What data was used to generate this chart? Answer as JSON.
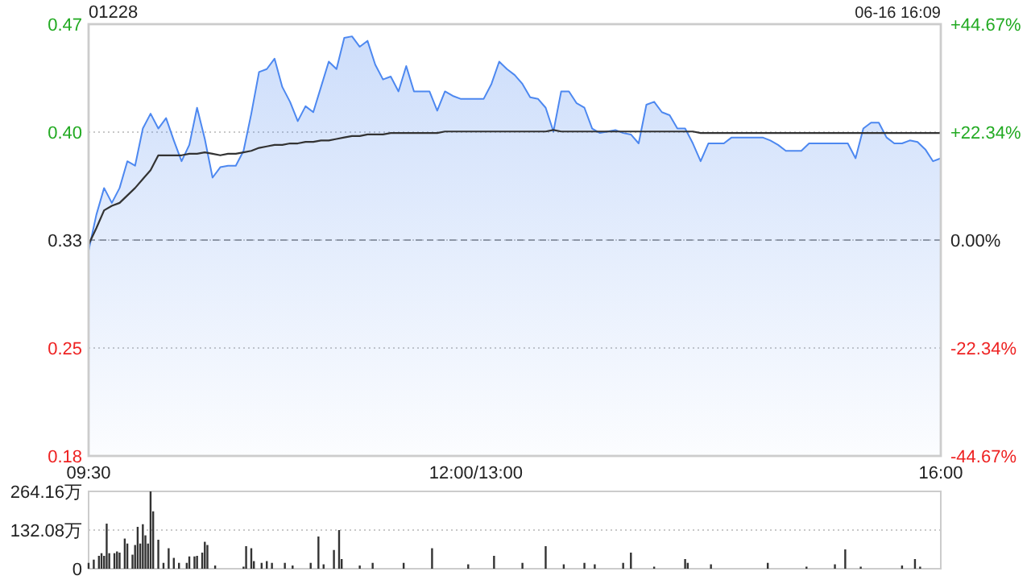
{
  "chart_data": [
    {
      "type": "area",
      "title": "01228",
      "annotations": [
        "06-16 16:09"
      ],
      "grid": "y",
      "categories": [
        "09:30",
        null,
        null,
        null,
        null,
        null,
        null,
        null,
        null,
        null,
        null,
        null,
        null,
        null,
        null,
        null,
        null,
        null,
        null,
        null,
        null,
        null,
        null,
        null,
        null,
        null,
        null,
        null,
        null,
        null,
        null,
        null,
        null,
        null,
        null,
        null,
        null,
        null,
        null,
        null,
        null,
        null,
        null,
        null,
        null,
        null,
        null,
        null,
        null,
        null,
        "12:00/13:00",
        null,
        null,
        null,
        null,
        null,
        null,
        null,
        null,
        null,
        null,
        null,
        null,
        null,
        null,
        null,
        null,
        null,
        null,
        null,
        null,
        null,
        null,
        null,
        null,
        null,
        null,
        null,
        null,
        null,
        null,
        null,
        null,
        null,
        null,
        null,
        null,
        null,
        null,
        null,
        null,
        null,
        null,
        null,
        null,
        null,
        null,
        null,
        null,
        null,
        null,
        null,
        null,
        null,
        null,
        null,
        null,
        null,
        null,
        null,
        "16:00"
      ],
      "ylim": [
        0.1798,
        0.4702
      ],
      "yticks": [
        {
          "value": 0.1798,
          "label": "0.18"
        },
        {
          "value": 0.2524,
          "label": "0.25"
        },
        {
          "value": 0.325,
          "label": "0.33"
        },
        {
          "value": 0.3976,
          "label": "0.40"
        },
        {
          "value": 0.4702,
          "label": "0.47"
        }
      ],
      "y2lim": [
        -44.67,
        44.67
      ],
      "y2ticks": [
        {
          "value": -44.67,
          "label": "-44.67%"
        },
        {
          "value": -22.34,
          "label": "-22.34%"
        },
        {
          "value": 0,
          "label": "0.00%"
        },
        {
          "value": 22.34,
          "label": "+22.34%"
        },
        {
          "value": 44.67,
          "label": "+44.67%"
        }
      ],
      "ref_lines": [
        {
          "axis": "y",
          "value": 0.325,
          "color": "#999999",
          "line_style": "dashed"
        }
      ],
      "series": [
        {
          "color": "#4d88f0",
          "values": [
            0.318,
            0.342,
            0.36,
            0.35,
            0.36,
            0.378,
            0.375,
            0.4,
            0.41,
            0.4,
            0.407,
            0.392,
            0.378,
            0.389,
            0.414,
            0.393,
            0.367,
            0.374,
            0.375,
            0.375,
            0.385,
            0.41,
            0.438,
            0.44,
            0.447,
            0.428,
            0.418,
            0.405,
            0.415,
            0.411,
            0.428,
            0.445,
            0.44,
            0.461,
            0.462,
            0.455,
            0.459,
            0.443,
            0.433,
            0.435,
            0.425,
            0.442,
            0.425,
            0.425,
            0.425,
            0.412,
            0.425,
            0.422,
            0.42,
            0.42,
            0.42,
            0.42,
            0.43,
            0.445,
            0.44,
            0.436,
            0.43,
            0.421,
            0.42,
            0.414,
            0.398,
            0.425,
            0.425,
            0.417,
            0.414,
            0.4,
            0.397,
            0.398,
            0.399,
            0.397,
            0.396,
            0.39,
            0.416,
            0.418,
            0.411,
            0.409,
            0.4,
            0.4,
            0.39,
            0.378,
            0.39,
            0.39,
            0.39,
            0.394,
            0.394,
            0.394,
            0.394,
            0.394,
            0.392,
            0.389,
            0.385,
            0.385,
            0.385,
            0.39,
            0.39,
            0.39,
            0.39,
            0.39,
            0.39,
            0.38,
            0.4,
            0.404,
            0.404,
            0.394,
            0.39,
            0.39,
            0.392,
            0.391,
            0.386,
            0.378,
            0.38
          ]
        },
        {
          "type": "line",
          "color": "#333333",
          "values": [
            0.322,
            0.333,
            0.345,
            0.348,
            0.35,
            0.355,
            0.36,
            0.366,
            0.372,
            0.382,
            0.382,
            0.382,
            0.382,
            0.383,
            0.383,
            0.384,
            0.383,
            0.382,
            0.383,
            0.383,
            0.384,
            0.385,
            0.387,
            0.388,
            0.389,
            0.389,
            0.39,
            0.39,
            0.391,
            0.391,
            0.392,
            0.392,
            0.393,
            0.394,
            0.395,
            0.395,
            0.396,
            0.396,
            0.396,
            0.397,
            0.397,
            0.397,
            0.397,
            0.397,
            0.397,
            0.397,
            0.398,
            0.398,
            0.398,
            0.398,
            0.398,
            0.398,
            0.398,
            0.398,
            0.398,
            0.398,
            0.398,
            0.398,
            0.398,
            0.398,
            0.399,
            0.398,
            0.398,
            0.398,
            0.398,
            0.398,
            0.398,
            0.398,
            0.398,
            0.398,
            0.398,
            0.398,
            0.398,
            0.398,
            0.398,
            0.398,
            0.398,
            0.398,
            0.398,
            0.397,
            0.397,
            0.397,
            0.397,
            0.397,
            0.397,
            0.397,
            0.397,
            0.397,
            0.397,
            0.397,
            0.397,
            0.397,
            0.397,
            0.397,
            0.397,
            0.397,
            0.397,
            0.397,
            0.397,
            0.397,
            0.397,
            0.397,
            0.397,
            0.397,
            0.397,
            0.397,
            0.397,
            0.397,
            0.397,
            0.397,
            0.397
          ]
        }
      ]
    },
    {
      "type": "bar",
      "grid": "y",
      "categories": [
        null,
        null,
        null,
        null,
        null,
        null,
        null,
        null,
        null,
        null,
        null,
        null,
        null,
        null,
        null,
        null,
        null,
        null,
        null,
        null,
        null,
        null,
        null,
        null,
        null,
        null,
        null,
        null,
        null,
        null,
        null,
        null,
        null,
        null,
        null,
        null,
        null,
        null,
        null,
        null,
        null,
        null,
        null,
        null,
        null,
        null,
        null,
        null,
        null,
        null,
        null,
        null,
        null,
        null,
        null,
        null,
        null,
        null,
        null,
        null,
        null,
        null,
        null,
        null,
        null,
        null,
        null,
        null,
        null,
        null,
        null,
        null,
        null,
        null,
        null,
        null,
        null,
        null,
        null,
        null,
        null,
        null,
        null,
        null,
        null,
        null,
        null,
        null,
        null,
        null,
        null,
        null,
        null,
        null,
        null,
        null,
        null,
        null,
        null,
        null,
        null,
        null,
        null,
        null,
        null,
        null,
        null,
        null,
        null,
        null,
        null,
        null,
        null,
        null,
        null,
        null,
        null,
        null,
        null,
        null,
        null,
        null,
        null,
        null,
        null,
        null,
        null,
        null,
        null,
        null,
        null,
        null,
        null,
        null,
        null,
        null,
        null,
        null,
        null,
        null,
        null,
        null,
        null,
        null,
        null,
        null,
        null,
        null,
        null,
        null,
        null,
        null,
        null,
        null,
        null,
        null,
        null,
        null,
        null,
        null,
        null,
        null,
        null,
        null,
        null,
        null,
        null,
        null,
        null,
        null,
        null,
        null,
        null,
        null,
        null,
        null,
        null,
        null,
        null,
        null,
        null,
        null,
        null,
        null,
        null,
        null,
        null,
        null,
        null,
        null,
        null,
        null,
        null,
        null,
        null,
        null,
        null,
        null,
        null,
        null,
        null,
        null,
        null,
        null,
        null,
        null,
        null,
        null,
        null,
        null,
        null,
        null,
        null,
        null,
        null,
        null,
        null,
        null,
        null,
        null,
        null,
        null,
        null,
        null,
        null,
        null,
        null,
        null,
        null,
        null,
        null,
        null,
        null,
        null,
        null,
        null,
        null,
        null,
        null,
        null,
        null,
        null,
        null,
        null,
        null,
        null,
        null,
        null,
        null,
        null,
        null,
        null,
        null,
        null,
        null,
        null,
        null,
        null,
        null,
        null,
        null,
        null,
        null,
        null,
        null,
        null,
        null,
        null,
        null,
        null,
        null,
        null,
        null,
        null,
        null,
        null,
        null,
        null,
        null,
        null,
        null,
        null,
        null,
        null,
        null,
        null,
        null,
        null,
        null,
        null,
        null,
        null,
        null,
        null,
        null,
        null,
        null,
        null,
        null,
        null,
        null,
        null,
        null,
        null,
        null,
        null,
        null,
        null,
        null,
        null,
        null,
        null,
        null,
        null,
        null,
        null,
        null,
        null,
        null,
        null,
        null,
        null,
        null,
        null,
        null,
        null,
        null,
        null,
        null,
        null,
        null
      ],
      "ylim": [
        0,
        264.16
      ],
      "yticks": [
        0,
        {
          "value": 132.08,
          "label": "132.08万"
        },
        {
          "value": 264.16,
          "label": "264.16万"
        }
      ],
      "series": [
        {
          "color": "#333333",
          "values": [
            20,
            null,
            31,
            null,
            44,
            53,
            44,
            154,
            53,
            null,
            53,
            59,
            55,
            null,
            103,
            86,
            null,
            48,
            81,
            143,
            86,
            152,
            114,
            86,
            264,
            196,
            null,
            99,
            null,
            20,
            null,
            70,
            null,
            37,
            null,
            20,
            null,
            null,
            20,
            42,
            null,
            42,
            44,
            null,
            55,
            92,
            81,
            null,
            null,
            11,
            null,
            null,
            null,
            null,
            null,
            null,
            null,
            null,
            null,
            null,
            7,
            77,
            null,
            70,
            26,
            null,
            null,
            20,
            null,
            26,
            null,
            20,
            null,
            null,
            null,
            null,
            20,
            null,
            null,
            11,
            null,
            null,
            null,
            null,
            null,
            null,
            20,
            null,
            null,
            110,
            null,
            15,
            null,
            null,
            null,
            64,
            null,
            132,
            33,
            null,
            null,
            null,
            null,
            null,
            null,
            11,
            null,
            null,
            null,
            null,
            20,
            null,
            null,
            null,
            null,
            null,
            null,
            null,
            null,
            null,
            null,
            null,
            20,
            null,
            null,
            null,
            null,
            null,
            null,
            null,
            null,
            null,
            null,
            70,
            null,
            null,
            null,
            null,
            null,
            null,
            null,
            null,
            null,
            null,
            null,
            null,
            null,
            15,
            null,
            null,
            null,
            null,
            null,
            null,
            null,
            null,
            null,
            44,
            null,
            null,
            null,
            null,
            null,
            null,
            null,
            null,
            null,
            null,
            20,
            null,
            null,
            null,
            null,
            null,
            null,
            null,
            null,
            77,
            null,
            null,
            null,
            null,
            null,
            null,
            15,
            null,
            null,
            null,
            null,
            null,
            null,
            null,
            20,
            null,
            null,
            null,
            15,
            null,
            null,
            null,
            null,
            null,
            null,
            null,
            null,
            null,
            null,
            20,
            null,
            null,
            55,
            null,
            null,
            null,
            null,
            null,
            null,
            null,
            null,
            7,
            null,
            null,
            null,
            null,
            null,
            null,
            null,
            null,
            null,
            null,
            null,
            33,
            20,
            null,
            null,
            null,
            null,
            null,
            null,
            null,
            null,
            15,
            null,
            null,
            null,
            null,
            null,
            null,
            null,
            null,
            null,
            null,
            null,
            null,
            null,
            null,
            null,
            null,
            null,
            null,
            null,
            null,
            null,
            20,
            null,
            null,
            null,
            null,
            null,
            null,
            null,
            null,
            null,
            null,
            null,
            null,
            null,
            null,
            7,
            null,
            null,
            null,
            null,
            null,
            null,
            null,
            null,
            null,
            null,
            15,
            null,
            null,
            null,
            66,
            null,
            null,
            null,
            null,
            null,
            7,
            null,
            null,
            null,
            null,
            null,
            null,
            null,
            null,
            null,
            null,
            null,
            null,
            null,
            null,
            null,
            11,
            null,
            null,
            null,
            null,
            33,
            null,
            7,
            null,
            null,
            null,
            null,
            null,
            null,
            null,
            null
          ]
        }
      ]
    }
  ]
}
